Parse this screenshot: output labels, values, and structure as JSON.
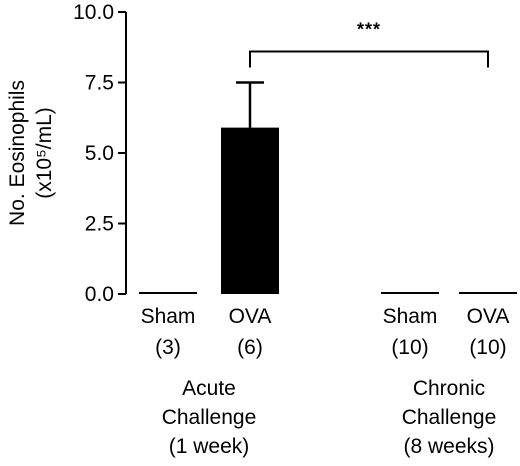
{
  "chart_data": {
    "type": "bar",
    "ylabel_line1": "No. Eosinophils",
    "ylabel_line2": "(x10⁵/mL)",
    "ylim": [
      0,
      10
    ],
    "yticks": [
      "0.0",
      "2.5",
      "5.0",
      "7.5",
      "10.0"
    ],
    "ytick_values": [
      0,
      2.5,
      5.0,
      7.5,
      10.0
    ],
    "bar_color": "#000000",
    "categories": [
      {
        "name": "Sham",
        "n": "(3)",
        "value": 0.0,
        "error": 0.0
      },
      {
        "name": "OVA",
        "n": "(6)",
        "value": 5.9,
        "error": 1.6
      },
      {
        "name": "Sham",
        "n": "(10)",
        "value": 0.02,
        "error": 0.0
      },
      {
        "name": "OVA",
        "n": "(10)",
        "value": 0.06,
        "error": 0.0
      }
    ],
    "groups": [
      {
        "lines": [
          "Acute",
          "Challenge",
          "(1 week)"
        ]
      },
      {
        "lines": [
          "Chronic",
          "Challenge",
          "(8 weeks)"
        ]
      }
    ],
    "significance": {
      "label": "***",
      "from_category": 1,
      "to_category": 3,
      "y": 8.6
    }
  }
}
